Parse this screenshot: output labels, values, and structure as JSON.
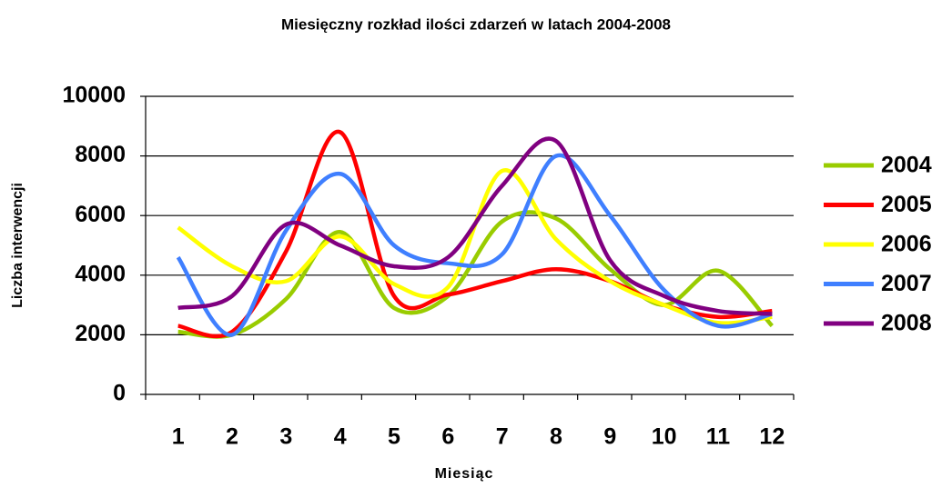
{
  "chart_data": {
    "type": "line",
    "title": "Miesięczny rozkład ilości zdarzeń w latach 2004-2008",
    "x_label": "Miesiąc",
    "y_label": "Liczba interwencji",
    "categories": [
      "1",
      "2",
      "3",
      "4",
      "5",
      "6",
      "7",
      "8",
      "9",
      "10",
      "11",
      "12"
    ],
    "series": [
      {
        "name": "2004",
        "color": "#99cc00",
        "values": [
          2100,
          2000,
          3200,
          5450,
          2900,
          3300,
          5800,
          5900,
          4200,
          3000,
          4150,
          2300
        ]
      },
      {
        "name": "2005",
        "color": "#ff0000",
        "values": [
          2300,
          2100,
          4800,
          8800,
          3300,
          3350,
          3800,
          4200,
          3800,
          3000,
          2600,
          2800
        ]
      },
      {
        "name": "2006",
        "color": "#ffff00",
        "values": [
          5600,
          4300,
          3800,
          5300,
          3700,
          3600,
          7500,
          5200,
          3800,
          3000,
          2400,
          2600
        ]
      },
      {
        "name": "2007",
        "color": "#3f7fff",
        "values": [
          4600,
          2000,
          5500,
          7400,
          5000,
          4400,
          4700,
          8000,
          6000,
          3500,
          2300,
          2700
        ]
      },
      {
        "name": "2008",
        "color": "#800080",
        "values": [
          2900,
          3300,
          5700,
          5000,
          4300,
          4600,
          7000,
          8500,
          4500,
          3300,
          2800,
          2700
        ]
      }
    ],
    "ylim": [
      0,
      10000
    ],
    "yticks": [
      0,
      2000,
      4000,
      6000,
      8000,
      10000
    ],
    "grid": true,
    "legend": "right"
  }
}
